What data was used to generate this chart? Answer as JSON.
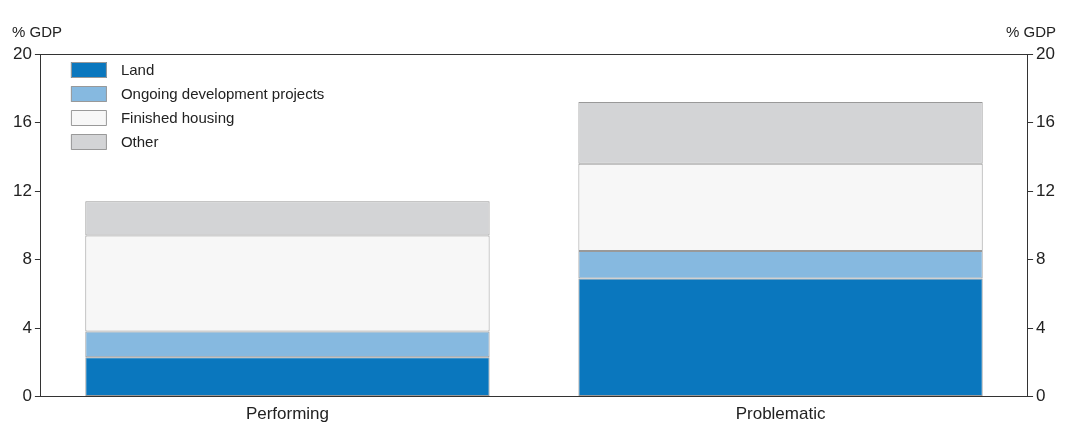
{
  "chart_data": {
    "type": "bar",
    "stacked": true,
    "ylabel": "% GDP",
    "y2label": "% GDP",
    "categories": [
      "Performing",
      "Problematic"
    ],
    "series": [
      {
        "name": "Land",
        "color": "#0a77be",
        "values": [
          2.3,
          6.9
        ]
      },
      {
        "name": "Ongoing development projects",
        "color": "#86b9e0",
        "values": [
          1.5,
          1.6
        ]
      },
      {
        "name": "Finished housing",
        "color": "#f7f7f7",
        "values": [
          5.6,
          5.1
        ]
      },
      {
        "name": "Other",
        "color": "#d3d4d6",
        "values": [
          2.0,
          3.6
        ]
      }
    ],
    "ylim": [
      0,
      20
    ],
    "yticks": [
      0,
      4,
      8,
      12,
      16,
      20
    ],
    "y2lim": [
      0,
      20
    ],
    "y2ticks": [
      0,
      4,
      8,
      12,
      16,
      20
    ],
    "grid": false,
    "legend": "top left"
  }
}
